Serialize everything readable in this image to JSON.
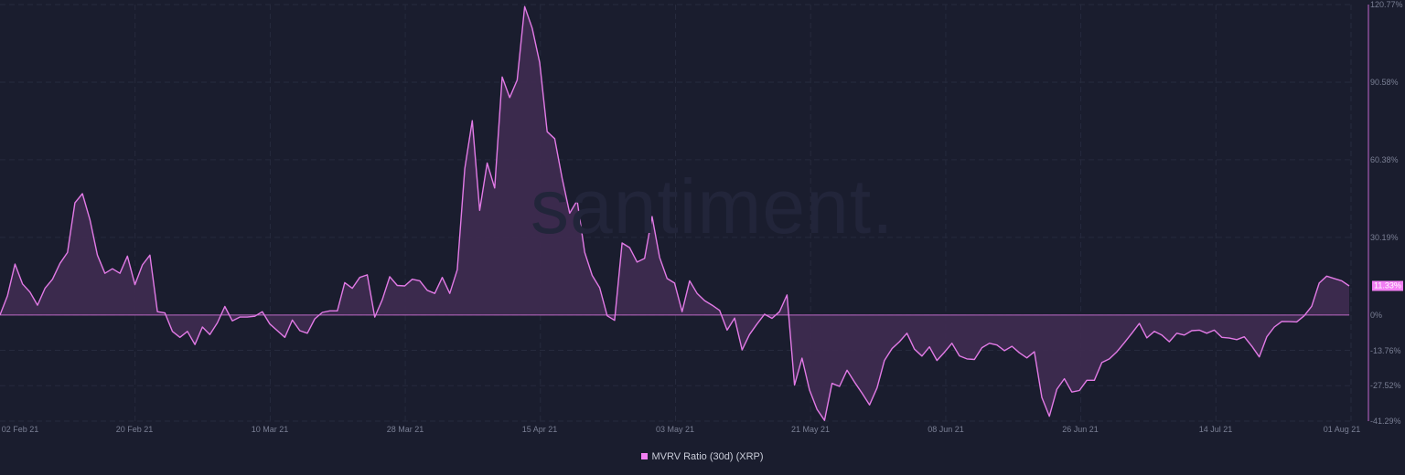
{
  "watermark": "santiment.",
  "legend": {
    "label": "MVRV Ratio (30d) (XRP)",
    "color": "#f27ff3"
  },
  "current_badge": "11.33%",
  "colors": {
    "background": "#1a1d2e",
    "line": "#e27ae6",
    "fill": "#3d2b4f",
    "grid": "#262a3d",
    "axis_text": "#7a7f94",
    "axis_line": "#8a4f99"
  },
  "y_axis": {
    "labels": [
      "120.77%",
      "90.58%",
      "60.38%",
      "30.19%",
      "0%",
      "-13.76%",
      "-27.52%",
      "-41.29%"
    ],
    "values": [
      120.77,
      90.58,
      60.38,
      30.19,
      0,
      -13.76,
      -27.52,
      -41.29
    ]
  },
  "x_axis": {
    "labels": [
      "02 Feb 21",
      "20 Feb 21",
      "10 Mar 21",
      "28 Mar 21",
      "15 Apr 21",
      "03 May 21",
      "21 May 21",
      "08 Jun 21",
      "26 Jun 21",
      "14 Jul 21",
      "01 Aug 21"
    ]
  },
  "chart_data": {
    "type": "area",
    "title": "",
    "xlabel": "",
    "ylabel": "",
    "legend": [
      "MVRV Ratio (30d) (XRP)"
    ],
    "legend_position": "bottom-center",
    "grid": true,
    "ylim": [
      -41.29,
      120.77
    ],
    "x_ticks": [
      "02 Feb 21",
      "20 Feb 21",
      "10 Mar 21",
      "28 Mar 21",
      "15 Apr 21",
      "03 May 21",
      "21 May 21",
      "08 Jun 21",
      "26 Jun 21",
      "14 Jul 21",
      "01 Aug 21"
    ],
    "y_ticks": [
      120.77,
      90.58,
      60.38,
      30.19,
      0,
      -13.76,
      -27.52,
      -41.29
    ],
    "last_value": 11.33,
    "series": [
      {
        "name": "MVRV Ratio (30d) (XRP)",
        "start_date": "31 Jan 21",
        "step": "1 day",
        "values": [
          0,
          7.5,
          19.8,
          12.1,
          8.9,
          3.8,
          10.4,
          13.9,
          20.1,
          24.3,
          43.6,
          47.2,
          37.1,
          23.3,
          16.2,
          18.0,
          16.2,
          22.9,
          11.8,
          19.5,
          23.3,
          1.3,
          0.8,
          -6.4,
          -8.7,
          -6.4,
          -11.5,
          -4.7,
          -7.6,
          -3.1,
          3.3,
          -2.3,
          -0.8,
          -0.8,
          -0.5,
          1.3,
          -3.5,
          -6.1,
          -8.7,
          -2.0,
          -6.1,
          -7.1,
          -1.5,
          1.0,
          1.6,
          1.6,
          12.6,
          10.4,
          14.6,
          15.6,
          -0.8,
          5.9,
          14.9,
          11.5,
          11.3,
          13.9,
          13.3,
          9.6,
          8.4,
          14.6,
          8.4,
          17.6,
          56.9,
          75.6,
          40.7,
          59.1,
          49.4,
          92.6,
          84.6,
          91.4,
          120.0,
          111.6,
          98.2,
          71.3,
          68.6,
          53.1,
          39.6,
          44.5,
          24.4,
          15.4,
          10.6,
          -0.3,
          -2.1,
          28.0,
          26.2,
          20.6,
          22.0,
          38.3,
          22.4,
          14.2,
          12.4,
          1.3,
          13.3,
          8.4,
          5.6,
          3.8,
          1.8,
          -5.9,
          -1.2,
          -13.6,
          -7.6,
          -3.5,
          0.3,
          -1.3,
          1.3,
          7.8,
          -27.3,
          -16.8,
          -29.2,
          -36.7,
          -41.0,
          -26.6,
          -27.8,
          -21.5,
          -26.1,
          -30.4,
          -35.0,
          -28.4,
          -17.7,
          -13.1,
          -10.4,
          -7.1,
          -13.3,
          -16.0,
          -12.4,
          -17.7,
          -14.5,
          -11.0,
          -15.9,
          -17.1,
          -17.3,
          -12.7,
          -11.0,
          -11.7,
          -13.9,
          -12.2,
          -14.7,
          -16.7,
          -14.3,
          -32.1,
          -39.4,
          -28.9,
          -24.8,
          -30.0,
          -29.4,
          -25.4,
          -25.4,
          -18.5,
          -17.1,
          -14.3,
          -10.8,
          -7.1,
          -3.3,
          -8.9,
          -6.4,
          -7.8,
          -10.4,
          -7.1,
          -7.8,
          -6.1,
          -5.9,
          -7.1,
          -5.9,
          -8.7,
          -9.0,
          -9.6,
          -8.5,
          -12.1,
          -16.3,
          -8.5,
          -4.7,
          -2.5,
          -2.6,
          -2.7,
          -0.3,
          3.4,
          12.4,
          15.1,
          14.2,
          13.3,
          11.3
        ]
      }
    ]
  }
}
